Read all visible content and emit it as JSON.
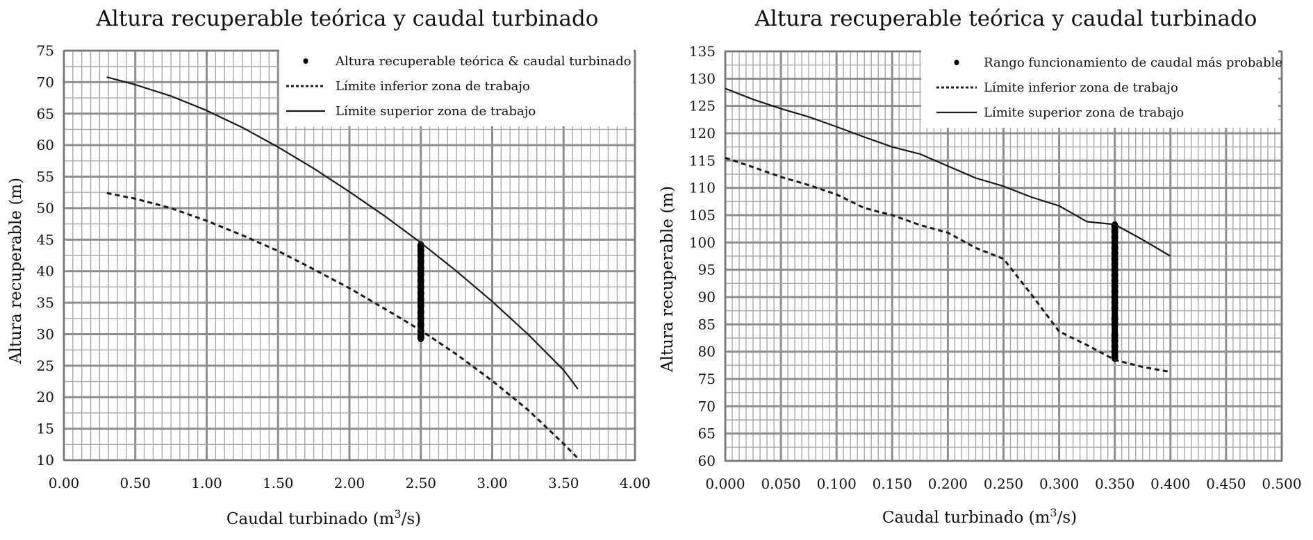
{
  "chart_data": [
    {
      "type": "line",
      "title": "Altura recuperable teórica y caudal turbinado",
      "xlabel": "Caudal turbinado (m",
      "xlabel_sup": "3",
      "xlabel_tail": "/s)",
      "ylabel": "Altura recuperable (m)",
      "xlim": [
        0,
        4
      ],
      "ylim": [
        10,
        75
      ],
      "x_ticks": [
        "0.00",
        "0.50",
        "1.00",
        "1.50",
        "2.00",
        "2.50",
        "3.00",
        "3.50",
        "4.00"
      ],
      "y_ticks": [
        "10",
        "15",
        "20",
        "25",
        "30",
        "35",
        "40",
        "45",
        "50",
        "55",
        "60",
        "65",
        "70",
        "75"
      ],
      "grid": true,
      "legend_position": "top-right",
      "legend": [
        "Altura recuperable teórica & caudal turbinado",
        "Límite inferior zona de trabajo",
        "Límite superior zona de trabajo"
      ],
      "series": [
        {
          "name": "Altura recuperable teórica & caudal turbinado",
          "style": "points",
          "x": [
            2.5,
            2.5,
            2.5,
            2.5,
            2.5,
            2.5,
            2.5,
            2.5,
            2.5,
            2.5,
            2.5,
            2.5,
            2.5,
            2.5,
            2.5,
            2.5
          ],
          "y": [
            29.5,
            30.5,
            31.5,
            32.5,
            33.5,
            34.5,
            35.5,
            36.5,
            37.5,
            38.5,
            39.5,
            40.5,
            41.5,
            42.5,
            43.3,
            44.0
          ]
        },
        {
          "name": "Límite inferior zona de trabajo",
          "style": "dashed",
          "x": [
            0.3,
            0.5,
            0.75,
            1.0,
            1.25,
            1.5,
            1.75,
            2.0,
            2.25,
            2.5,
            2.75,
            3.0,
            3.25,
            3.5,
            3.6
          ],
          "y": [
            52.4,
            51.5,
            50.0,
            48.0,
            45.7,
            43.2,
            40.3,
            37.3,
            34.0,
            30.6,
            26.8,
            22.6,
            18.0,
            12.6,
            10.3
          ]
        },
        {
          "name": "Límite superior zona de trabajo",
          "style": "solid",
          "x": [
            0.3,
            0.5,
            0.75,
            1.0,
            1.25,
            1.5,
            1.75,
            2.0,
            2.25,
            2.5,
            2.75,
            3.0,
            3.25,
            3.5,
            3.6
          ],
          "y": [
            70.8,
            69.6,
            67.8,
            65.5,
            62.8,
            59.7,
            56.3,
            52.6,
            48.7,
            44.5,
            40.0,
            35.2,
            30.0,
            24.3,
            21.3
          ]
        }
      ]
    },
    {
      "type": "line",
      "title": "Altura recuperable teórica y caudal turbinado",
      "xlabel": "Caudal turbinado (m",
      "xlabel_sup": "3",
      "xlabel_tail": "/s)",
      "ylabel": "Altura recuperable (m)",
      "xlim": [
        0,
        0.5
      ],
      "ylim": [
        60,
        135
      ],
      "x_ticks": [
        "0.000",
        "0.050",
        "0.100",
        "0.150",
        "0.200",
        "0.250",
        "0.300",
        "0.350",
        "0.400",
        "0.450",
        "0.500"
      ],
      "y_ticks": [
        "60",
        "65",
        "70",
        "75",
        "80",
        "85",
        "90",
        "95",
        "100",
        "105",
        "110",
        "115",
        "120",
        "125",
        "130",
        "135"
      ],
      "grid": true,
      "legend_position": "top-right",
      "legend": [
        "Rango funcionamiento de caudal más probable",
        "Límite inferior zona de trabajo",
        "Límite superior zona de trabajo"
      ],
      "series": [
        {
          "name": "Rango funcionamiento de caudal más probable",
          "style": "points",
          "x": [
            0.35,
            0.35,
            0.35,
            0.35,
            0.35,
            0.35,
            0.35,
            0.35,
            0.35,
            0.35,
            0.35,
            0.35,
            0.35,
            0.35,
            0.35,
            0.35,
            0.35,
            0.35,
            0.35,
            0.35,
            0.35,
            0.35,
            0.35
          ],
          "y": [
            79,
            80,
            81,
            82,
            83,
            85,
            86,
            88,
            89,
            90,
            91,
            92,
            93,
            94,
            95,
            96,
            97,
            98,
            99,
            100,
            101,
            102,
            103
          ]
        },
        {
          "name": "Límite inferior zona de trabajo",
          "style": "dashed",
          "x": [
            0.0,
            0.025,
            0.05,
            0.075,
            0.1,
            0.125,
            0.15,
            0.175,
            0.2,
            0.225,
            0.25,
            0.275,
            0.3,
            0.325,
            0.35,
            0.375,
            0.4
          ],
          "y": [
            115.5,
            113.8,
            112.0,
            110.5,
            108.8,
            106.3,
            105.0,
            103.2,
            101.8,
            99.0,
            97.0,
            90.5,
            83.7,
            81.2,
            78.5,
            77.2,
            76.3
          ]
        },
        {
          "name": "Límite superior zona de trabajo",
          "style": "solid",
          "x": [
            0.0,
            0.025,
            0.05,
            0.075,
            0.1,
            0.125,
            0.15,
            0.175,
            0.2,
            0.225,
            0.25,
            0.275,
            0.3,
            0.325,
            0.35,
            0.375,
            0.4
          ],
          "y": [
            128.2,
            126.2,
            124.5,
            123.0,
            121.2,
            119.3,
            117.5,
            116.2,
            114.0,
            111.8,
            110.3,
            108.3,
            106.7,
            103.8,
            103.3,
            100.5,
            97.5
          ]
        }
      ]
    }
  ]
}
